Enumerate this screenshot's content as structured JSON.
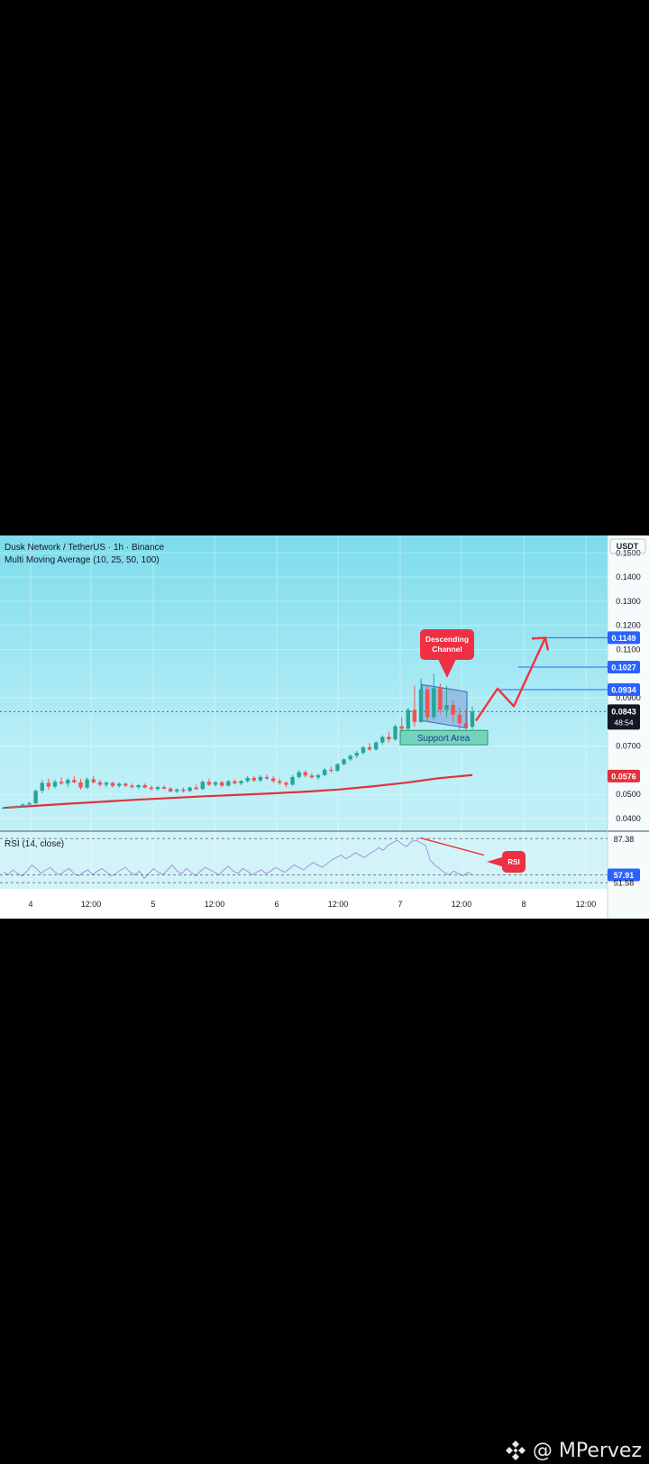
{
  "chart_data": {
    "type": "candlestick",
    "title": "Dusk Network / TetherUS · 1h · Binance",
    "subtitle": "Multi Moving Average (10, 25, 50, 100)",
    "currency": "USDT",
    "y_ticks": [
      "0.1500",
      "0.1400",
      "0.1300",
      "0.1200",
      "0.1100",
      "0.0900",
      "0.0700",
      "0.0500",
      "0.0400"
    ],
    "ylim": [
      0.037,
      0.155
    ],
    "x_ticks": [
      "4",
      "12:00",
      "5",
      "12:00",
      "6",
      "12:00",
      "7",
      "12:00",
      "8",
      "12:00"
    ],
    "price_levels": [
      {
        "value": 0.1149,
        "label": "0.1149",
        "color": "#2962ff"
      },
      {
        "value": 0.1027,
        "label": "0.1027",
        "color": "#2962ff"
      },
      {
        "value": 0.0934,
        "label": "0.0934",
        "color": "#2962ff"
      }
    ],
    "current_price": {
      "label": "0.0843",
      "countdown": "48:54",
      "value": 0.0843
    },
    "ma_label": {
      "label": "0.0576",
      "value": 0.0576
    },
    "candles": [
      [
        0.0442,
        0.0448,
        0.0438,
        0.0445
      ],
      [
        0.0445,
        0.0452,
        0.044,
        0.0447
      ],
      [
        0.0447,
        0.0455,
        0.0443,
        0.0449
      ],
      [
        0.0449,
        0.0462,
        0.0445,
        0.0458
      ],
      [
        0.0458,
        0.047,
        0.0452,
        0.0463
      ],
      [
        0.0463,
        0.052,
        0.046,
        0.0515
      ],
      [
        0.0515,
        0.056,
        0.0505,
        0.0548
      ],
      [
        0.0548,
        0.0565,
        0.052,
        0.0532
      ],
      [
        0.0532,
        0.056,
        0.0525,
        0.0552
      ],
      [
        0.0552,
        0.057,
        0.054,
        0.0545
      ],
      [
        0.0545,
        0.0568,
        0.053,
        0.056
      ],
      [
        0.056,
        0.0575,
        0.0545,
        0.055
      ],
      [
        0.055,
        0.0565,
        0.052,
        0.0528
      ],
      [
        0.0528,
        0.057,
        0.0522,
        0.0562
      ],
      [
        0.0562,
        0.0575,
        0.0545,
        0.055
      ],
      [
        0.055,
        0.056,
        0.0532,
        0.054
      ],
      [
        0.054,
        0.0555,
        0.053,
        0.0548
      ],
      [
        0.0548,
        0.0552,
        0.0528,
        0.0535
      ],
      [
        0.0535,
        0.055,
        0.0528,
        0.0544
      ],
      [
        0.0544,
        0.055,
        0.053,
        0.0536
      ],
      [
        0.0536,
        0.0545,
        0.0525,
        0.053
      ],
      [
        0.053,
        0.0542,
        0.0522,
        0.0538
      ],
      [
        0.0538,
        0.0545,
        0.0525,
        0.0528
      ],
      [
        0.0528,
        0.0536,
        0.0516,
        0.0522
      ],
      [
        0.0522,
        0.0535,
        0.0515,
        0.053
      ],
      [
        0.053,
        0.0538,
        0.052,
        0.0524
      ],
      [
        0.0524,
        0.053,
        0.0508,
        0.0512
      ],
      [
        0.0512,
        0.0525,
        0.0505,
        0.052
      ],
      [
        0.052,
        0.0528,
        0.0508,
        0.0514
      ],
      [
        0.0514,
        0.0532,
        0.051,
        0.0528
      ],
      [
        0.0528,
        0.054,
        0.0518,
        0.0522
      ],
      [
        0.0522,
        0.0558,
        0.0518,
        0.0552
      ],
      [
        0.0552,
        0.0565,
        0.0535,
        0.054
      ],
      [
        0.054,
        0.0556,
        0.0532,
        0.055
      ],
      [
        0.055,
        0.0555,
        0.053,
        0.0536
      ],
      [
        0.0536,
        0.056,
        0.0532,
        0.0554
      ],
      [
        0.0554,
        0.0562,
        0.054,
        0.0546
      ],
      [
        0.0546,
        0.056,
        0.0538,
        0.0555
      ],
      [
        0.0555,
        0.0575,
        0.0548,
        0.0568
      ],
      [
        0.0568,
        0.0575,
        0.0552,
        0.0558
      ],
      [
        0.0558,
        0.058,
        0.055,
        0.0572
      ],
      [
        0.0572,
        0.0582,
        0.056,
        0.0566
      ],
      [
        0.0566,
        0.0575,
        0.0548,
        0.0555
      ],
      [
        0.0555,
        0.0565,
        0.054,
        0.0548
      ],
      [
        0.0548,
        0.0555,
        0.053,
        0.054
      ],
      [
        0.054,
        0.058,
        0.0535,
        0.0572
      ],
      [
        0.0572,
        0.06,
        0.0565,
        0.0592
      ],
      [
        0.0592,
        0.06,
        0.057,
        0.0578
      ],
      [
        0.0578,
        0.0588,
        0.0565,
        0.057
      ],
      [
        0.057,
        0.0585,
        0.056,
        0.058
      ],
      [
        0.058,
        0.061,
        0.0575,
        0.0602
      ],
      [
        0.0602,
        0.0615,
        0.059,
        0.0598
      ],
      [
        0.0598,
        0.063,
        0.0592,
        0.0625
      ],
      [
        0.0625,
        0.065,
        0.062,
        0.0645
      ],
      [
        0.0645,
        0.0665,
        0.0638,
        0.066
      ],
      [
        0.066,
        0.068,
        0.065,
        0.0672
      ],
      [
        0.0672,
        0.07,
        0.0665,
        0.0695
      ],
      [
        0.0695,
        0.0712,
        0.068,
        0.0686
      ],
      [
        0.0686,
        0.072,
        0.0682,
        0.0715
      ],
      [
        0.0715,
        0.0745,
        0.0705,
        0.0738
      ],
      [
        0.0738,
        0.076,
        0.0715,
        0.0728
      ],
      [
        0.0728,
        0.079,
        0.0722,
        0.0782
      ],
      [
        0.0782,
        0.082,
        0.076,
        0.0772
      ],
      [
        0.0772,
        0.086,
        0.0765,
        0.085
      ],
      [
        0.085,
        0.095,
        0.078,
        0.08
      ],
      [
        0.08,
        0.098,
        0.0795,
        0.0935
      ],
      [
        0.0935,
        0.095,
        0.08,
        0.082
      ],
      [
        0.082,
        0.1,
        0.081,
        0.094
      ],
      [
        0.094,
        0.096,
        0.0835,
        0.085
      ],
      [
        0.085,
        0.095,
        0.082,
        0.087
      ],
      [
        0.087,
        0.089,
        0.08,
        0.083
      ],
      [
        0.083,
        0.086,
        0.077,
        0.0795
      ],
      [
        0.0795,
        0.085,
        0.076,
        0.078
      ],
      [
        0.078,
        0.0865,
        0.077,
        0.0843
      ]
    ],
    "ma_line": [
      0.0444,
      0.0453,
      0.0462,
      0.047,
      0.0478,
      0.0485,
      0.0492,
      0.0498,
      0.0504,
      0.0511,
      0.052,
      0.0533,
      0.0548,
      0.0567,
      0.058
    ],
    "projection": [
      [
        0.0805,
        0.0938
      ],
      [
        0.0865,
        0.1149
      ]
    ],
    "annotations": {
      "descending_channel": "Descending Channel",
      "support_area": "Support Area",
      "rsi_tag": "RSI"
    },
    "rsi": {
      "label": "RSI (14, close)",
      "levels": [
        87.38,
        57.91,
        51.58
      ],
      "level_labels": [
        "87.38",
        "57.91",
        "51.58"
      ],
      "ylim": [
        48,
        92
      ],
      "values": [
        60,
        58,
        62,
        59,
        57,
        61,
        66,
        63,
        59,
        62,
        64,
        60,
        58,
        61,
        63,
        59,
        57,
        60,
        62,
        58,
        61,
        63,
        60,
        57,
        59,
        62,
        64,
        60,
        58,
        61,
        55,
        59,
        63,
        60,
        58,
        62,
        66,
        61,
        59,
        63,
        60,
        57,
        61,
        64,
        62,
        60,
        58,
        62,
        65,
        61,
        59,
        63,
        61,
        58,
        60,
        62,
        59,
        61,
        64,
        62,
        60,
        63,
        66,
        64,
        62,
        65,
        68,
        66,
        64,
        67,
        70,
        72,
        74,
        71,
        73,
        76,
        74,
        72,
        75,
        77,
        80,
        78,
        82,
        84,
        86,
        83,
        81,
        85,
        86,
        84,
        82,
        70,
        66,
        63,
        60,
        58,
        61,
        59,
        57,
        60,
        58
      ]
    }
  },
  "watermark": {
    "text": "@ MPervez"
  }
}
